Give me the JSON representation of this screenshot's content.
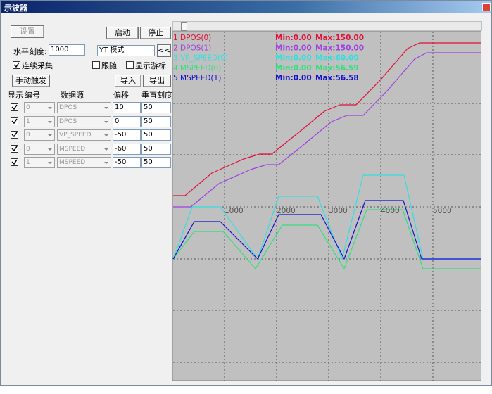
{
  "window": {
    "title": "示波器"
  },
  "controls": {
    "settings_button": "设置",
    "start_button": "启动",
    "stop_button": "停止",
    "horizontal_scale_label": "水平刻度:",
    "horizontal_scale_value": "1000",
    "mode": "YT 模式",
    "collapse_button": "<<",
    "continuous_capture": "连续采集",
    "follow": "跟随",
    "show_cursor": "显示游标",
    "manual_trigger": "手动触发",
    "import_button": "导入",
    "export_button": "导出"
  },
  "table": {
    "headers": [
      "显示",
      "编号",
      "数据源",
      "偏移",
      "垂直刻度"
    ],
    "rows": [
      [
        "0",
        "DPOS",
        "10",
        "50"
      ],
      [
        "1",
        "DPOS",
        "0",
        "50"
      ],
      [
        "0",
        "VP_SPEED",
        "-50",
        "50"
      ],
      [
        "0",
        "MSPEED",
        "-60",
        "50"
      ],
      [
        "1",
        "MSPEED",
        "-50",
        "50"
      ]
    ]
  },
  "plot": {
    "legend": [
      {
        "name": "1 DPOS(0)",
        "min": "Min:0.00",
        "max": "Max:150.00",
        "color": "#e0103a"
      },
      {
        "name": "2 DPOS(1)",
        "min": "Min:0.00",
        "max": "Max:150.00",
        "color": "#a040e0"
      },
      {
        "name": "3 VP_SPEED(0)",
        "min": "Min:0.00",
        "max": "Max:60.00",
        "color": "#30e0e0"
      },
      {
        "name": "4 MSPEED(0)",
        "min": "Min:0.00",
        "max": "Max:56.59",
        "color": "#30e080"
      },
      {
        "name": "5 MSPEED(1)",
        "min": "Min:0.00",
        "max": "Max:56.58",
        "color": "#1010d0"
      }
    ],
    "x_labels": [
      "1000",
      "2000",
      "3000",
      "4000",
      "5000"
    ]
  }
}
